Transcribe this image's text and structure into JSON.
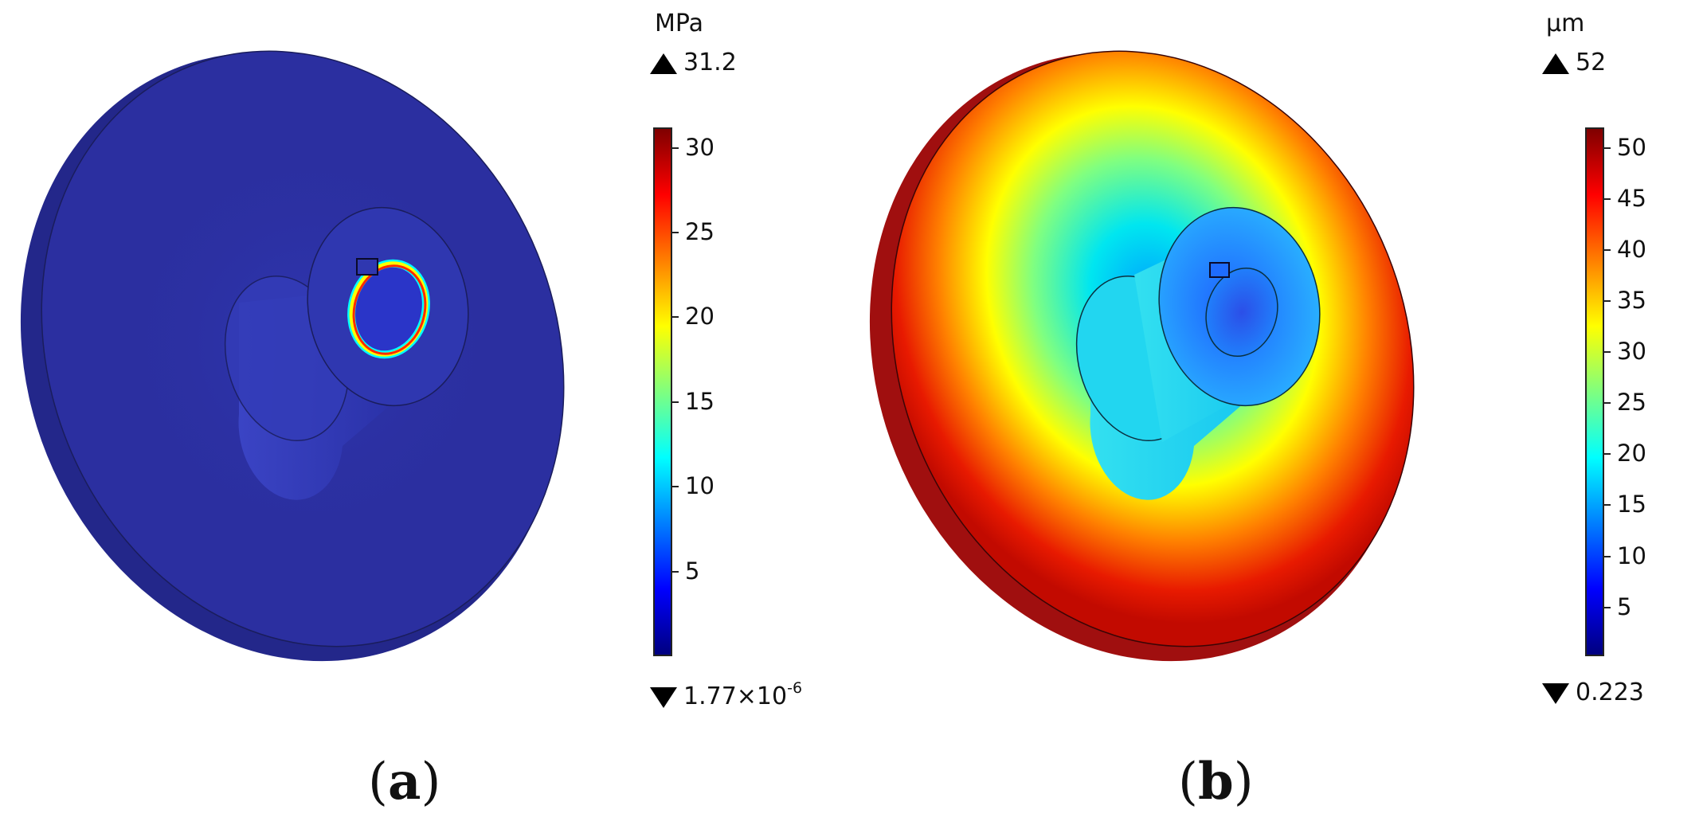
{
  "panels": [
    {
      "id": "a",
      "caption_open": "(",
      "caption_letter": "a",
      "caption_close": ")",
      "unit": "MPa",
      "max_label": "31.2",
      "min_label": "1.77×10",
      "min_exponent": "-6",
      "colorbar_ticks": [
        "30",
        "25",
        "20",
        "15",
        "10",
        "5"
      ],
      "colorbar_tick_values": [
        30,
        25,
        20,
        15,
        10,
        5
      ],
      "colorbar_range": [
        1.77e-06,
        31.2
      ]
    },
    {
      "id": "b",
      "caption_open": "(",
      "caption_letter": "b",
      "caption_close": ")",
      "unit": "µm",
      "max_label": "52",
      "min_label": "0.223",
      "min_exponent": "",
      "colorbar_ticks": [
        "50",
        "45",
        "40",
        "35",
        "30",
        "25",
        "20",
        "15",
        "10",
        "5"
      ],
      "colorbar_tick_values": [
        50,
        45,
        40,
        35,
        30,
        25,
        20,
        15,
        10,
        5
      ],
      "colorbar_range": [
        0.223,
        52
      ]
    }
  ],
  "colors": {
    "jet": [
      "#00007f",
      "#0000ff",
      "#007fff",
      "#00ffff",
      "#7fff7f",
      "#ffff00",
      "#ff7f00",
      "#ff0000",
      "#7f0000"
    ],
    "stress_body": "#2b2fa0",
    "stress_body_dark": "#23278a",
    "displacement_rim": "#a00f0f"
  }
}
